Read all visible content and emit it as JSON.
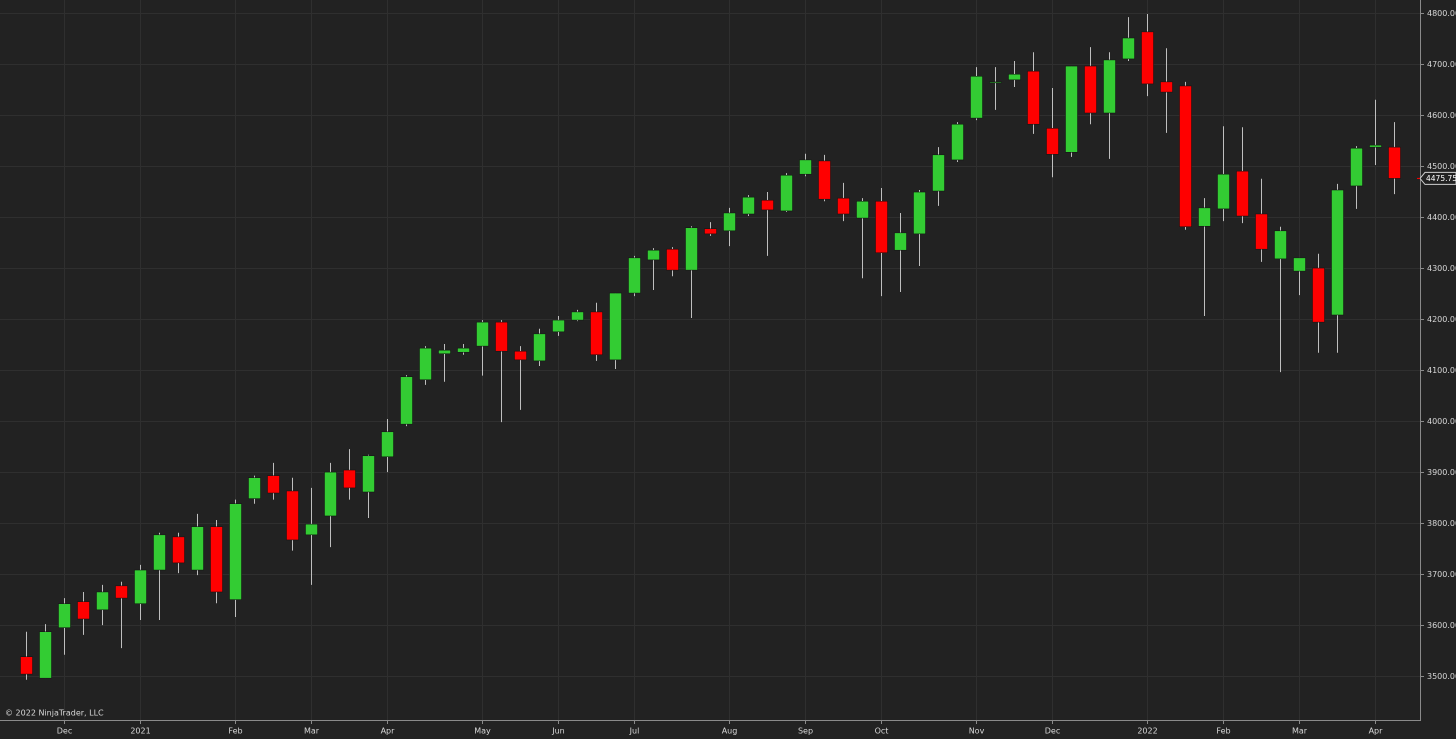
{
  "chart_data": {
    "type": "candlestick",
    "watermark": "© 2022 NinjaTrader, LLC",
    "up_color": "#33cc33",
    "down_color": "#ff0000",
    "wick_color": "#bfbfbf",
    "grid": true,
    "open": [
      3538,
      3496,
      3595,
      3646,
      3630,
      3677,
      3642,
      3708,
      3773,
      3708,
      3793,
      3650,
      3848,
      3893,
      3863,
      3777,
      3814,
      3904,
      3861,
      3930,
      3994,
      4081,
      4132,
      4135,
      4147,
      4194,
      4137,
      4118,
      4175,
      4198,
      4214,
      4120,
      4251,
      4316,
      4337,
      4296,
      4377,
      4373,
      4406,
      4433,
      4412,
      4484,
      4510,
      4437,
      4398,
      4431,
      4335,
      4367,
      4451,
      4512,
      4594,
      4664,
      4669,
      4686,
      4574,
      4527,
      4696,
      4604,
      4710,
      4763,
      4665,
      4657,
      4382,
      4416,
      4490,
      4406,
      4318,
      4294,
      4300,
      4208,
      4461,
      4537,
      4537
    ],
    "high": [
      3587,
      3602,
      3653,
      3665,
      3679,
      3685,
      3718,
      3781,
      3781,
      3818,
      3806,
      3846,
      3893,
      3918,
      3889,
      3869,
      3918,
      3945,
      3934,
      4004,
      4090,
      4147,
      4151,
      4151,
      4198,
      4198,
      4147,
      4181,
      4206,
      4218,
      4232,
      4251,
      4324,
      4339,
      4341,
      4382,
      4390,
      4418,
      4443,
      4449,
      4486,
      4524,
      4522,
      4467,
      4437,
      4457,
      4408,
      4453,
      4537,
      4586,
      4694,
      4694,
      4706,
      4723,
      4653,
      4696,
      4733,
      4723,
      4792,
      4798,
      4731,
      4665,
      4437,
      4578,
      4576,
      4475,
      4381,
      4320,
      4328,
      4465,
      4539,
      4630,
      4586
    ],
    "low": [
      3493,
      3496,
      3542,
      3581,
      3600,
      3555,
      3610,
      3610,
      3702,
      3698,
      3643,
      3616,
      3838,
      3846,
      3746,
      3679,
      3753,
      3846,
      3810,
      3900,
      3990,
      4071,
      4077,
      4130,
      4089,
      3998,
      4022,
      4108,
      4167,
      4196,
      4118,
      4102,
      4245,
      4257,
      4284,
      4202,
      4363,
      4343,
      4402,
      4324,
      4410,
      4480,
      4431,
      4392,
      4280,
      4245,
      4253,
      4304,
      4422,
      4508,
      4590,
      4610,
      4655,
      4563,
      4478,
      4518,
      4582,
      4514,
      4706,
      4637,
      4565,
      4375,
      4206,
      4392,
      4388,
      4312,
      4096,
      4247,
      4134,
      4134,
      4416,
      4502,
      4445
    ],
    "close": [
      3504,
      3587,
      3642,
      3612,
      3665,
      3653,
      3708,
      3777,
      3722,
      3793,
      3665,
      3838,
      3889,
      3859,
      3767,
      3798,
      3900,
      3869,
      3932,
      3979,
      4087,
      4143,
      4139,
      4143,
      4194,
      4137,
      4120,
      4171,
      4198,
      4214,
      4130,
      4251,
      4320,
      4335,
      4296,
      4379,
      4367,
      4408,
      4439,
      4414,
      4482,
      4512,
      4435,
      4406,
      4431,
      4330,
      4369,
      4449,
      4522,
      4582,
      4676,
      4665,
      4680,
      4582,
      4523,
      4696,
      4604,
      4708,
      4751,
      4661,
      4645,
      4381,
      4418,
      4484,
      4402,
      4337,
      4373,
      4320,
      4194,
      4453,
      4535,
      4541,
      4475.75
    ],
    "ylim": [
      3414,
      4825.5
    ],
    "yticks": [
      {
        "value": 3500,
        "label": "3500.00"
      },
      {
        "value": 3600,
        "label": "3600.00"
      },
      {
        "value": 3700,
        "label": "3700.00"
      },
      {
        "value": 3800,
        "label": "3800.00"
      },
      {
        "value": 3900,
        "label": "3900.00"
      },
      {
        "value": 4000,
        "label": "4000.00"
      },
      {
        "value": 4100,
        "label": "4100.00"
      },
      {
        "value": 4200,
        "label": "4200.00"
      },
      {
        "value": 4300,
        "label": "4300.00"
      },
      {
        "value": 4400,
        "label": "4400.00"
      },
      {
        "value": 4500,
        "label": "4500.00"
      },
      {
        "value": 4600,
        "label": "4600.00"
      },
      {
        "value": 4700,
        "label": "4700.00"
      },
      {
        "value": 4800,
        "label": "4800.00"
      }
    ],
    "xlim": [
      -1.37,
      73.37
    ],
    "xticks": [
      {
        "value": 2,
        "label": "Dec"
      },
      {
        "value": 6,
        "label": "2021"
      },
      {
        "value": 11,
        "label": "Feb"
      },
      {
        "value": 15,
        "label": "Mar"
      },
      {
        "value": 19,
        "label": "Apr"
      },
      {
        "value": 24,
        "label": "May"
      },
      {
        "value": 28,
        "label": "Jun"
      },
      {
        "value": 32,
        "label": "Jul"
      },
      {
        "value": 37,
        "label": "Aug"
      },
      {
        "value": 41,
        "label": "Sep"
      },
      {
        "value": 45,
        "label": "Oct"
      },
      {
        "value": 50,
        "label": "Nov"
      },
      {
        "value": 54,
        "label": "Dec"
      },
      {
        "value": 59,
        "label": "2022"
      },
      {
        "value": 63,
        "label": "Feb"
      },
      {
        "value": 67,
        "label": "Mar"
      },
      {
        "value": 71,
        "label": "Apr"
      }
    ]
  }
}
